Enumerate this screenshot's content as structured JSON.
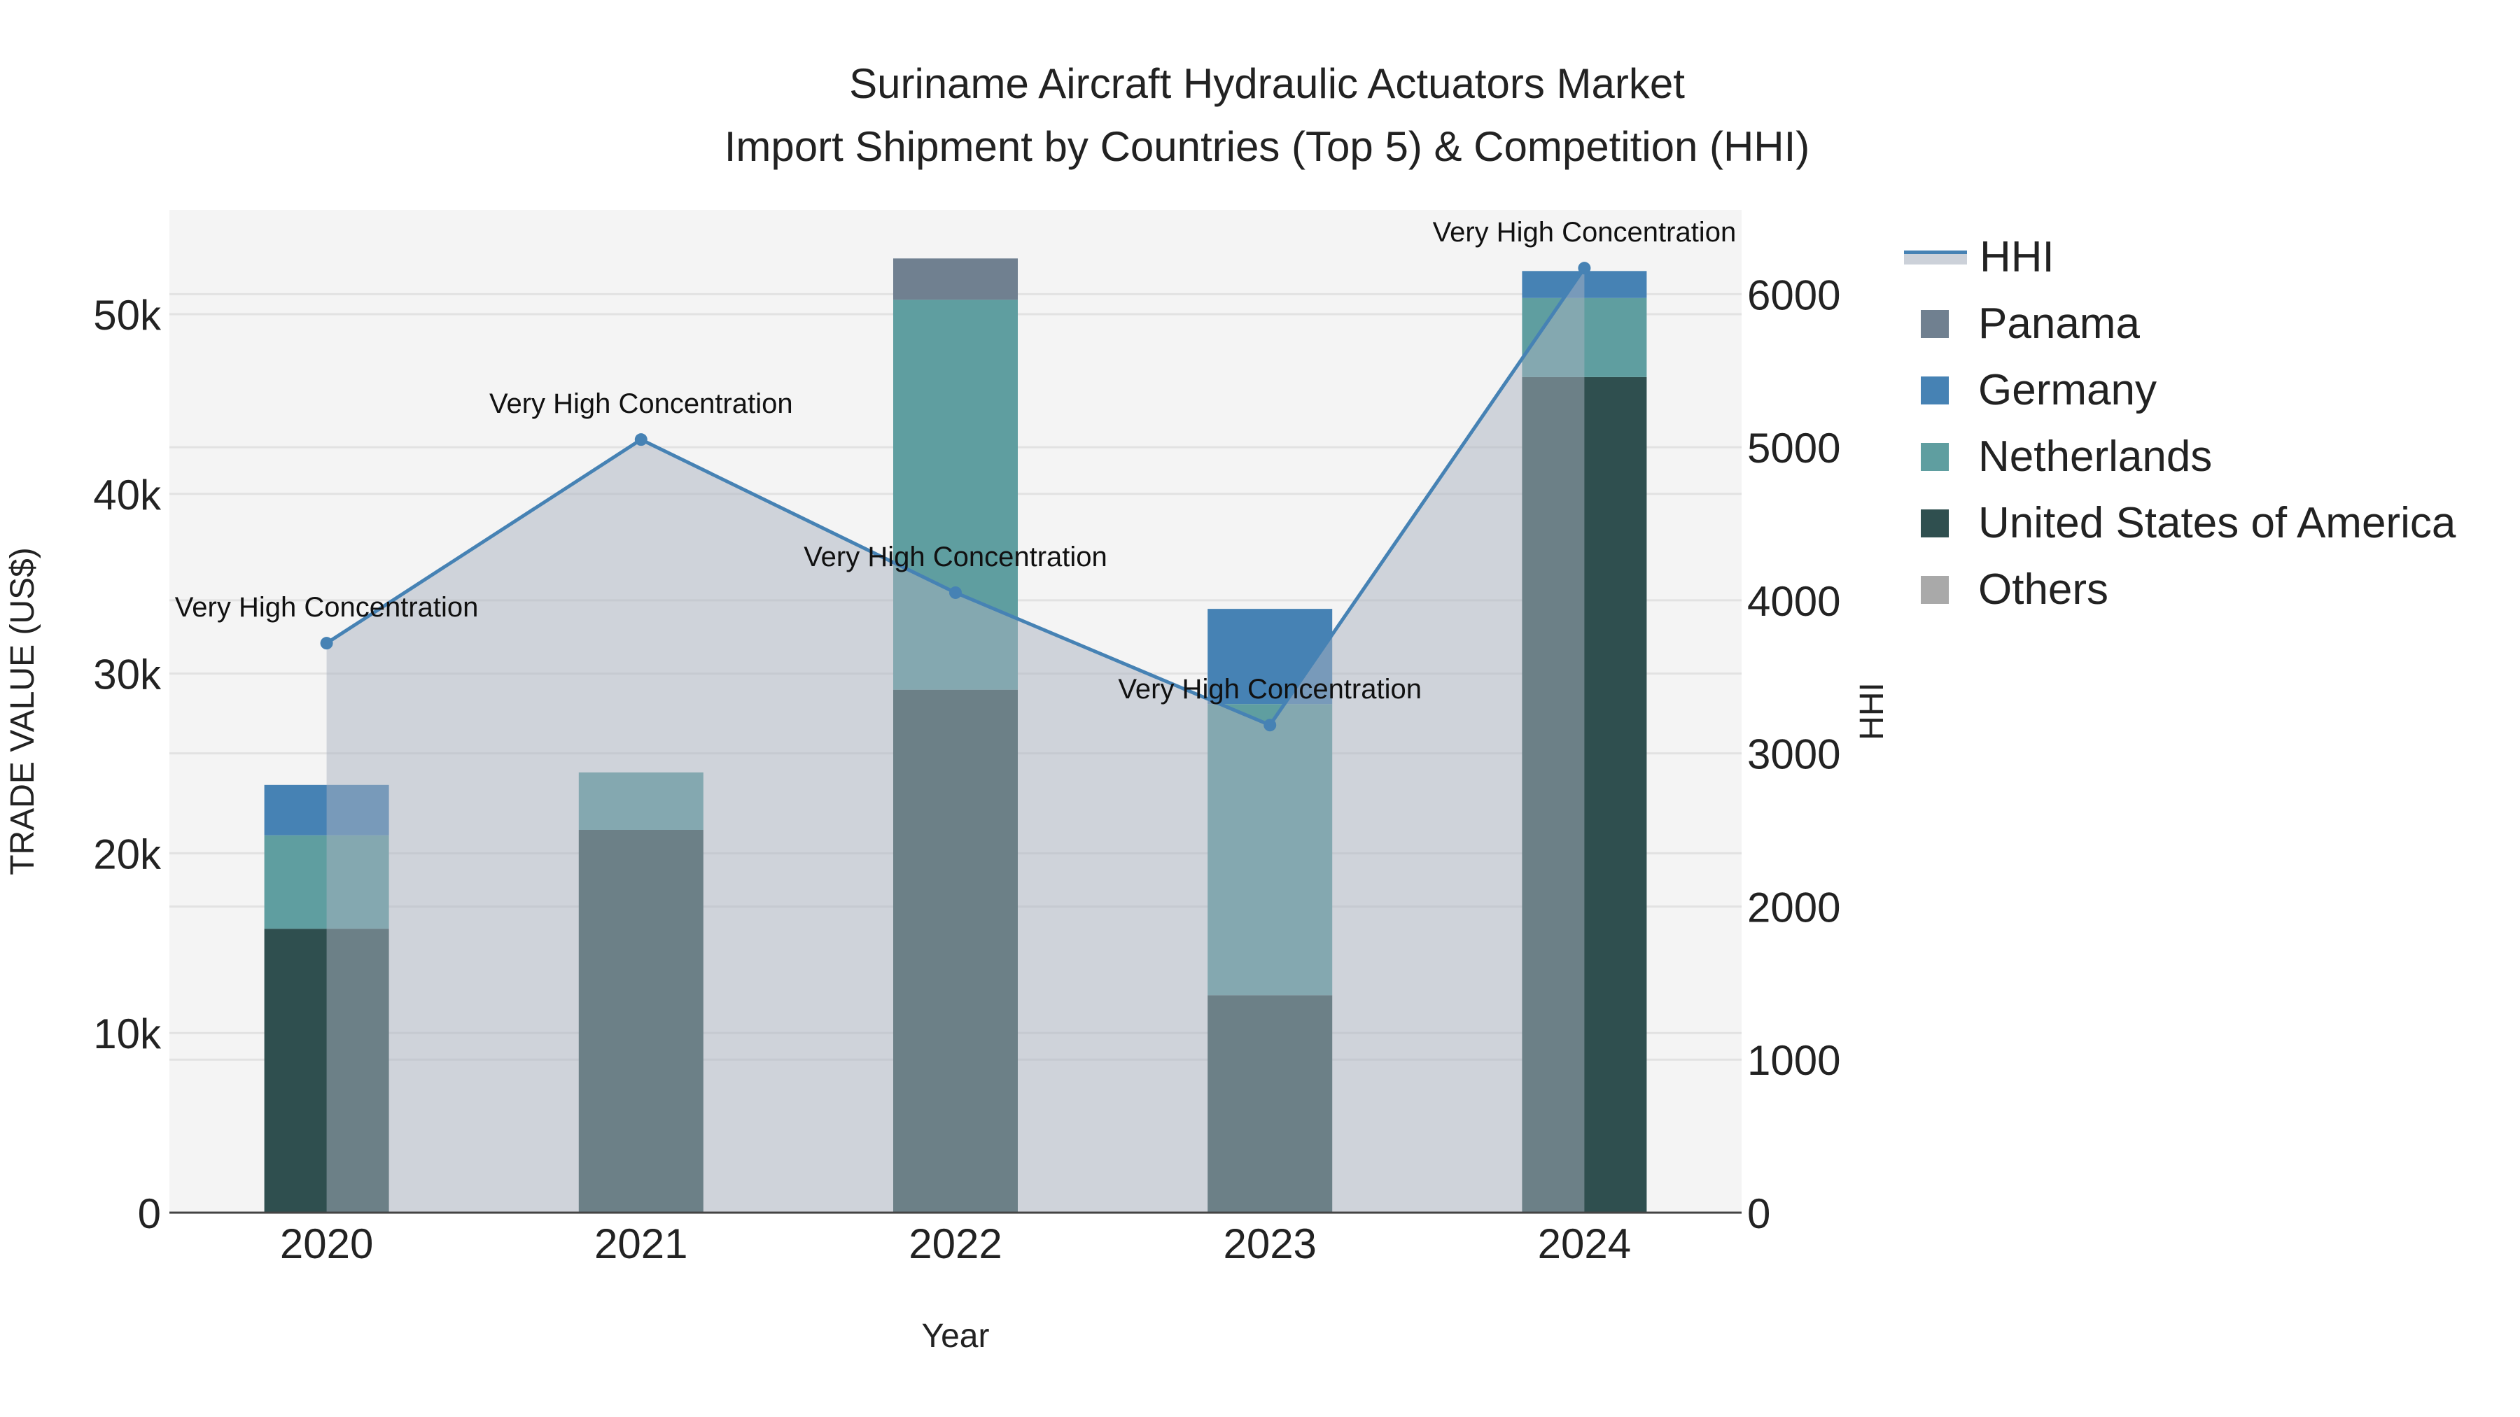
{
  "chart_data": {
    "type": "bar",
    "title": "Suriname Aircraft Hydraulic Actuators Market",
    "subtitle": "Import Shipment by Countries (Top 5) & Competition (HHI)",
    "xlabel": "Year",
    "ylabel": "TRADE VALUE (US$)",
    "y2label": "HHI",
    "categories": [
      "2020",
      "2021",
      "2022",
      "2023",
      "2024"
    ],
    "ylim": [
      0,
      55800
    ],
    "y2lim": [
      0,
      6550
    ],
    "yticks": [
      0,
      10000,
      20000,
      30000,
      40000,
      50000
    ],
    "ytick_labels": [
      "0",
      "10k",
      "20k",
      "30k",
      "40k",
      "50k"
    ],
    "y2ticks": [
      0,
      1000,
      2000,
      3000,
      4000,
      5000,
      6000
    ],
    "y2tick_labels": [
      "0",
      "1000",
      "2000",
      "3000",
      "4000",
      "5000",
      "6000"
    ],
    "series": [
      {
        "name": "United States of America",
        "color": "#2f4f4f",
        "values": [
          15800,
          21300,
          29100,
          12100,
          46500
        ]
      },
      {
        "name": "Netherlands",
        "color": "#5f9ea0",
        "values": [
          5200,
          3200,
          21700,
          16200,
          4400
        ]
      },
      {
        "name": "Germany",
        "color": "#4682b4",
        "values": [
          2800,
          0,
          0,
          5300,
          1500
        ]
      },
      {
        "name": "Panama",
        "color": "#708090",
        "values": [
          0,
          0,
          2300,
          0,
          0
        ]
      },
      {
        "name": "Others",
        "color": "#a9a9a9",
        "values": [
          0,
          0,
          0,
          0,
          0
        ]
      }
    ],
    "hhi": {
      "name": "HHI",
      "color": "#4682b4",
      "values": [
        3720,
        5050,
        4050,
        3185,
        6170
      ],
      "annotations": [
        "Very High Concentration",
        "Very High Concentration",
        "Very High Concentration",
        "Very High Concentration",
        "Very High Concentration"
      ]
    },
    "legend": [
      "HHI",
      "Panama",
      "Germany",
      "Netherlands",
      "United States of America",
      "Others"
    ],
    "legend_position": "right",
    "grid": true
  }
}
